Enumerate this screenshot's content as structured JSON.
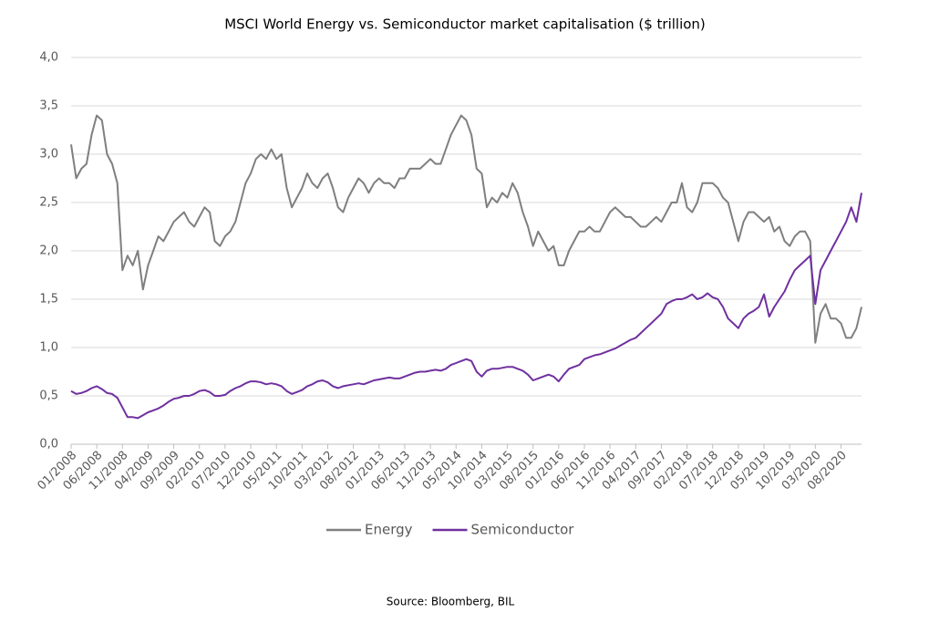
{
  "chart_data": {
    "type": "line",
    "title": "MSCI World Energy vs. Semiconductor market capitalisation ($ trillion)",
    "source": "Source: Bloomberg, BIL",
    "categories": [
      "01/2008",
      null,
      null,
      null,
      null,
      "06/2008",
      null,
      null,
      null,
      null,
      "11/2008",
      null,
      null,
      null,
      null,
      "04/2009",
      null,
      null,
      null,
      null,
      "09/2009",
      null,
      null,
      null,
      null,
      "02/2010",
      null,
      null,
      null,
      null,
      "07/2010",
      null,
      null,
      null,
      null,
      "12/2010",
      null,
      null,
      null,
      null,
      "05/2011",
      null,
      null,
      null,
      null,
      "10/2011",
      null,
      null,
      null,
      null,
      "03/2012",
      null,
      null,
      null,
      null,
      "08/2012",
      null,
      null,
      null,
      null,
      "01/2013",
      null,
      null,
      null,
      null,
      "06/2013",
      null,
      null,
      null,
      null,
      "11/2013",
      null,
      null,
      null,
      null,
      "05/2014",
      null,
      null,
      null,
      null,
      "10/2014",
      null,
      null,
      null,
      null,
      "03/2015",
      null,
      null,
      null,
      null,
      "08/2015",
      null,
      null,
      null,
      null,
      "01/2016",
      null,
      null,
      null,
      null,
      "06/2016",
      null,
      null,
      null,
      null,
      "11/2016",
      null,
      null,
      null,
      null,
      "04/2017",
      null,
      null,
      null,
      null,
      "09/2017",
      null,
      null,
      null,
      null,
      "02/2018",
      null,
      null,
      null,
      null,
      "07/2018",
      null,
      null,
      null,
      null,
      "12/2018",
      null,
      null,
      null,
      null,
      "05/2019",
      null,
      null,
      null,
      null,
      "10/2019",
      null,
      null,
      null,
      null,
      "03/2020",
      null,
      null,
      null,
      null,
      "08/2020",
      null,
      null,
      null,
      null
    ],
    "series": [
      {
        "name": "Energy",
        "color": "#7f7f7f",
        "values": [
          3.1,
          2.75,
          2.85,
          2.9,
          3.2,
          3.4,
          3.35,
          3.0,
          2.9,
          2.7,
          1.8,
          1.95,
          1.85,
          2.0,
          1.6,
          1.85,
          2.0,
          2.15,
          2.1,
          2.2,
          2.3,
          2.35,
          2.4,
          2.3,
          2.25,
          2.35,
          2.45,
          2.4,
          2.1,
          2.05,
          2.15,
          2.2,
          2.3,
          2.5,
          2.7,
          2.8,
          2.95,
          3.0,
          2.95,
          3.05,
          2.95,
          3.0,
          2.65,
          2.45,
          2.55,
          2.65,
          2.8,
          2.7,
          2.65,
          2.75,
          2.8,
          2.65,
          2.45,
          2.4,
          2.55,
          2.65,
          2.75,
          2.7,
          2.6,
          2.7,
          2.75,
          2.7,
          2.7,
          2.65,
          2.75,
          2.75,
          2.85,
          2.85,
          2.85,
          2.9,
          2.95,
          2.9,
          2.9,
          3.05,
          3.2,
          3.3,
          3.4,
          3.35,
          3.2,
          2.85,
          2.8,
          2.45,
          2.55,
          2.5,
          2.6,
          2.55,
          2.7,
          2.6,
          2.4,
          2.25,
          2.05,
          2.2,
          2.1,
          2.0,
          2.05,
          1.85,
          1.85,
          2.0,
          2.1,
          2.2,
          2.2,
          2.25,
          2.2,
          2.2,
          2.3,
          2.4,
          2.45,
          2.4,
          2.35,
          2.35,
          2.3,
          2.25,
          2.25,
          2.3,
          2.35,
          2.3,
          2.4,
          2.5,
          2.5,
          2.7,
          2.45,
          2.4,
          2.5,
          2.7,
          2.7,
          2.7,
          2.65,
          2.55,
          2.5,
          2.3,
          2.1,
          2.3,
          2.4,
          2.4,
          2.35,
          2.3,
          2.35,
          2.2,
          2.25,
          2.1,
          2.05,
          2.15,
          2.2,
          2.2,
          2.1,
          1.05,
          1.35,
          1.45,
          1.3,
          1.3,
          1.25,
          1.1,
          1.1,
          1.2,
          1.42
        ]
      },
      {
        "name": "Semiconductor",
        "color": "#7030a0",
        "values": [
          0.55,
          0.52,
          0.53,
          0.55,
          0.58,
          0.6,
          0.57,
          0.53,
          0.52,
          0.48,
          0.38,
          0.28,
          0.28,
          0.27,
          0.3,
          0.33,
          0.35,
          0.37,
          0.4,
          0.44,
          0.47,
          0.48,
          0.5,
          0.5,
          0.52,
          0.55,
          0.56,
          0.54,
          0.5,
          0.5,
          0.51,
          0.55,
          0.58,
          0.6,
          0.63,
          0.65,
          0.65,
          0.64,
          0.62,
          0.63,
          0.62,
          0.6,
          0.55,
          0.52,
          0.54,
          0.56,
          0.6,
          0.62,
          0.65,
          0.66,
          0.64,
          0.6,
          0.58,
          0.6,
          0.61,
          0.62,
          0.63,
          0.62,
          0.64,
          0.66,
          0.67,
          0.68,
          0.69,
          0.68,
          0.68,
          0.7,
          0.72,
          0.74,
          0.75,
          0.75,
          0.76,
          0.77,
          0.76,
          0.78,
          0.82,
          0.84,
          0.86,
          0.88,
          0.86,
          0.75,
          0.7,
          0.76,
          0.78,
          0.78,
          0.79,
          0.8,
          0.8,
          0.78,
          0.76,
          0.72,
          0.66,
          0.68,
          0.7,
          0.72,
          0.7,
          0.65,
          0.72,
          0.78,
          0.8,
          0.82,
          0.88,
          0.9,
          0.92,
          0.93,
          0.95,
          0.97,
          0.99,
          1.02,
          1.05,
          1.08,
          1.1,
          1.15,
          1.2,
          1.25,
          1.3,
          1.35,
          1.45,
          1.48,
          1.5,
          1.5,
          1.52,
          1.55,
          1.5,
          1.52,
          1.56,
          1.52,
          1.5,
          1.42,
          1.3,
          1.25,
          1.2,
          1.3,
          1.35,
          1.38,
          1.42,
          1.55,
          1.32,
          1.42,
          1.5,
          1.58,
          1.7,
          1.8,
          1.85,
          1.9,
          1.95,
          1.45,
          1.8,
          1.9,
          2.0,
          2.1,
          2.2,
          2.3,
          2.45,
          2.3,
          2.6
        ]
      }
    ],
    "ylim": [
      0,
      4
    ],
    "yticks": [
      {
        "value": 0,
        "label": "0,0"
      },
      {
        "value": 0.5,
        "label": "0,5"
      },
      {
        "value": 1,
        "label": "1,0"
      },
      {
        "value": 1.5,
        "label": "1,5"
      },
      {
        "value": 2,
        "label": "2,0"
      },
      {
        "value": 2.5,
        "label": "2,5"
      },
      {
        "value": 3,
        "label": "3,0"
      },
      {
        "value": 3.5,
        "label": "3,5"
      },
      {
        "value": 4,
        "label": "4,0"
      }
    ],
    "grid": true,
    "legend": "bottom"
  }
}
